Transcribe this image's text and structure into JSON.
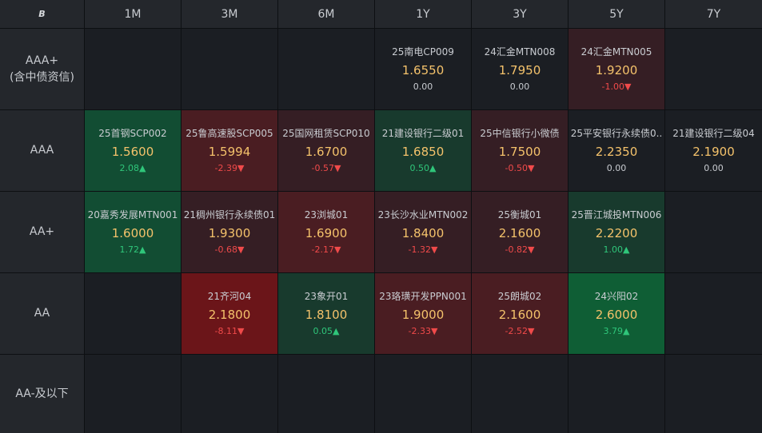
{
  "corner_logo": "B",
  "columns": [
    "1M",
    "3M",
    "6M",
    "1Y",
    "3Y",
    "5Y",
    "7Y"
  ],
  "colors": {
    "neutral": "#1b1e23",
    "green_light": "#183a2d",
    "green_mid": "#124d33",
    "green_strong": "#0f5e35",
    "red_light": "#351e24",
    "red_mid": "#4a1d22",
    "red_strong": "#6b1519",
    "rate": "#f4c26b",
    "up": "#2fc67a",
    "down": "#f04a4a"
  },
  "rows": [
    {
      "label_line1": "AAA+",
      "label_line2": "(含中债资信)",
      "cells": [
        null,
        null,
        null,
        {
          "name": "25南电CP009",
          "rate": "1.6550",
          "change": "0.00",
          "dir": "flat",
          "shade": "neutral"
        },
        {
          "name": "24汇金MTN008",
          "rate": "1.7950",
          "change": "0.00",
          "dir": "flat",
          "shade": "neutral"
        },
        {
          "name": "24汇金MTN005",
          "rate": "1.9200",
          "change": "-1.00▼",
          "dir": "down",
          "shade": "red_light"
        },
        null
      ]
    },
    {
      "label_line1": "AAA",
      "label_line2": "",
      "cells": [
        {
          "name": "25首钢SCP002",
          "rate": "1.5600",
          "change": "2.08▲",
          "dir": "up",
          "shade": "green_mid"
        },
        {
          "name": "25鲁高速股SCP005",
          "rate": "1.5994",
          "change": "-2.39▼",
          "dir": "down",
          "shade": "red_mid"
        },
        {
          "name": "25国网租赁SCP010",
          "rate": "1.6700",
          "change": "-0.57▼",
          "dir": "down",
          "shade": "red_light"
        },
        {
          "name": "21建设银行二级01",
          "rate": "1.6850",
          "change": "0.50▲",
          "dir": "up",
          "shade": "green_light"
        },
        {
          "name": "25中信银行小微债",
          "rate": "1.7500",
          "change": "-0.50▼",
          "dir": "down",
          "shade": "red_light"
        },
        {
          "name": "25平安银行永续债0..",
          "rate": "2.2350",
          "change": "0.00",
          "dir": "flat",
          "shade": "neutral"
        },
        {
          "name": "21建设银行二级04",
          "rate": "2.1900",
          "change": "0.00",
          "dir": "flat",
          "shade": "neutral"
        }
      ]
    },
    {
      "label_line1": "AA+",
      "label_line2": "",
      "cells": [
        {
          "name": "20嘉秀发展MTN001",
          "rate": "1.6000",
          "change": "1.72▲",
          "dir": "up",
          "shade": "green_mid"
        },
        {
          "name": "21稠州银行永续债01",
          "rate": "1.9300",
          "change": "-0.68▼",
          "dir": "down",
          "shade": "red_light"
        },
        {
          "name": "23浏城01",
          "rate": "1.6900",
          "change": "-2.17▼",
          "dir": "down",
          "shade": "red_mid"
        },
        {
          "name": "23长沙水业MTN002",
          "rate": "1.8400",
          "change": "-1.32▼",
          "dir": "down",
          "shade": "red_light"
        },
        {
          "name": "25衡城01",
          "rate": "2.1600",
          "change": "-0.82▼",
          "dir": "down",
          "shade": "red_light"
        },
        {
          "name": "25晋江城投MTN006",
          "rate": "2.2200",
          "change": "1.00▲",
          "dir": "up",
          "shade": "green_light"
        },
        null
      ]
    },
    {
      "label_line1": "AA",
      "label_line2": "",
      "cells": [
        null,
        {
          "name": "21齐河04",
          "rate": "2.1800",
          "change": "-8.11▼",
          "dir": "down",
          "shade": "red_strong"
        },
        {
          "name": "23象开01",
          "rate": "1.8100",
          "change": "0.05▲",
          "dir": "up",
          "shade": "green_light"
        },
        {
          "name": "23珞璜开发PPN001",
          "rate": "1.9000",
          "change": "-2.33▼",
          "dir": "down",
          "shade": "red_mid"
        },
        {
          "name": "25朗城02",
          "rate": "2.1600",
          "change": "-2.52▼",
          "dir": "down",
          "shade": "red_mid"
        },
        {
          "name": "24兴阳02",
          "rate": "2.6000",
          "change": "3.79▲",
          "dir": "up",
          "shade": "green_strong"
        },
        null
      ]
    },
    {
      "label_line1": "AA-及以下",
      "label_line2": "",
      "cells": [
        null,
        null,
        null,
        null,
        null,
        null,
        null
      ]
    }
  ]
}
